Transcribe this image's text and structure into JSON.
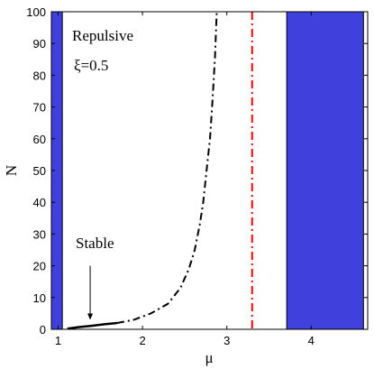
{
  "chart_data": {
    "type": "line",
    "xlabel": "μ",
    "ylabel": "N",
    "xlim": [
      0.92,
      4.67
    ],
    "ylim": [
      0,
      100
    ],
    "xticks": [
      1,
      2,
      3,
      4
    ],
    "yticks": [
      0,
      10,
      20,
      30,
      40,
      50,
      60,
      70,
      80,
      90,
      100
    ],
    "grid": false,
    "shaded_regions": [
      {
        "x": [
          0.92,
          1.05
        ],
        "color": "#4040dd"
      },
      {
        "x": [
          3.71,
          4.62
        ],
        "color": "#4040dd"
      }
    ],
    "vertical_line": {
      "x": 3.3,
      "color": "#ff0000",
      "style": "dash-dot"
    },
    "series": [
      {
        "style": "solid",
        "color": "#000000",
        "points": [
          [
            1.11,
            0.2
          ],
          [
            1.25,
            0.7
          ],
          [
            1.4,
            1.1
          ],
          [
            1.55,
            1.6
          ],
          [
            1.7,
            2.0
          ]
        ]
      },
      {
        "style": "dash-dot",
        "color": "#000000",
        "points": [
          [
            1.7,
            2.0
          ],
          [
            1.9,
            3.0
          ],
          [
            2.1,
            5.0
          ],
          [
            2.3,
            8.0
          ],
          [
            2.45,
            13.0
          ],
          [
            2.55,
            19.0
          ],
          [
            2.62,
            25.0
          ],
          [
            2.68,
            33.0
          ],
          [
            2.72,
            40.0
          ],
          [
            2.76,
            50.0
          ],
          [
            2.8,
            60.0
          ],
          [
            2.83,
            72.0
          ],
          [
            2.86,
            86.0
          ],
          [
            2.88,
            100.0
          ]
        ]
      }
    ],
    "annotations": {
      "repulsive": "Repulsive",
      "xi": "ξ=0.5",
      "stable": "Stable"
    },
    "stable_arrow": {
      "from": [
        1.38,
        20.0
      ],
      "to": [
        1.38,
        3.0
      ]
    }
  }
}
